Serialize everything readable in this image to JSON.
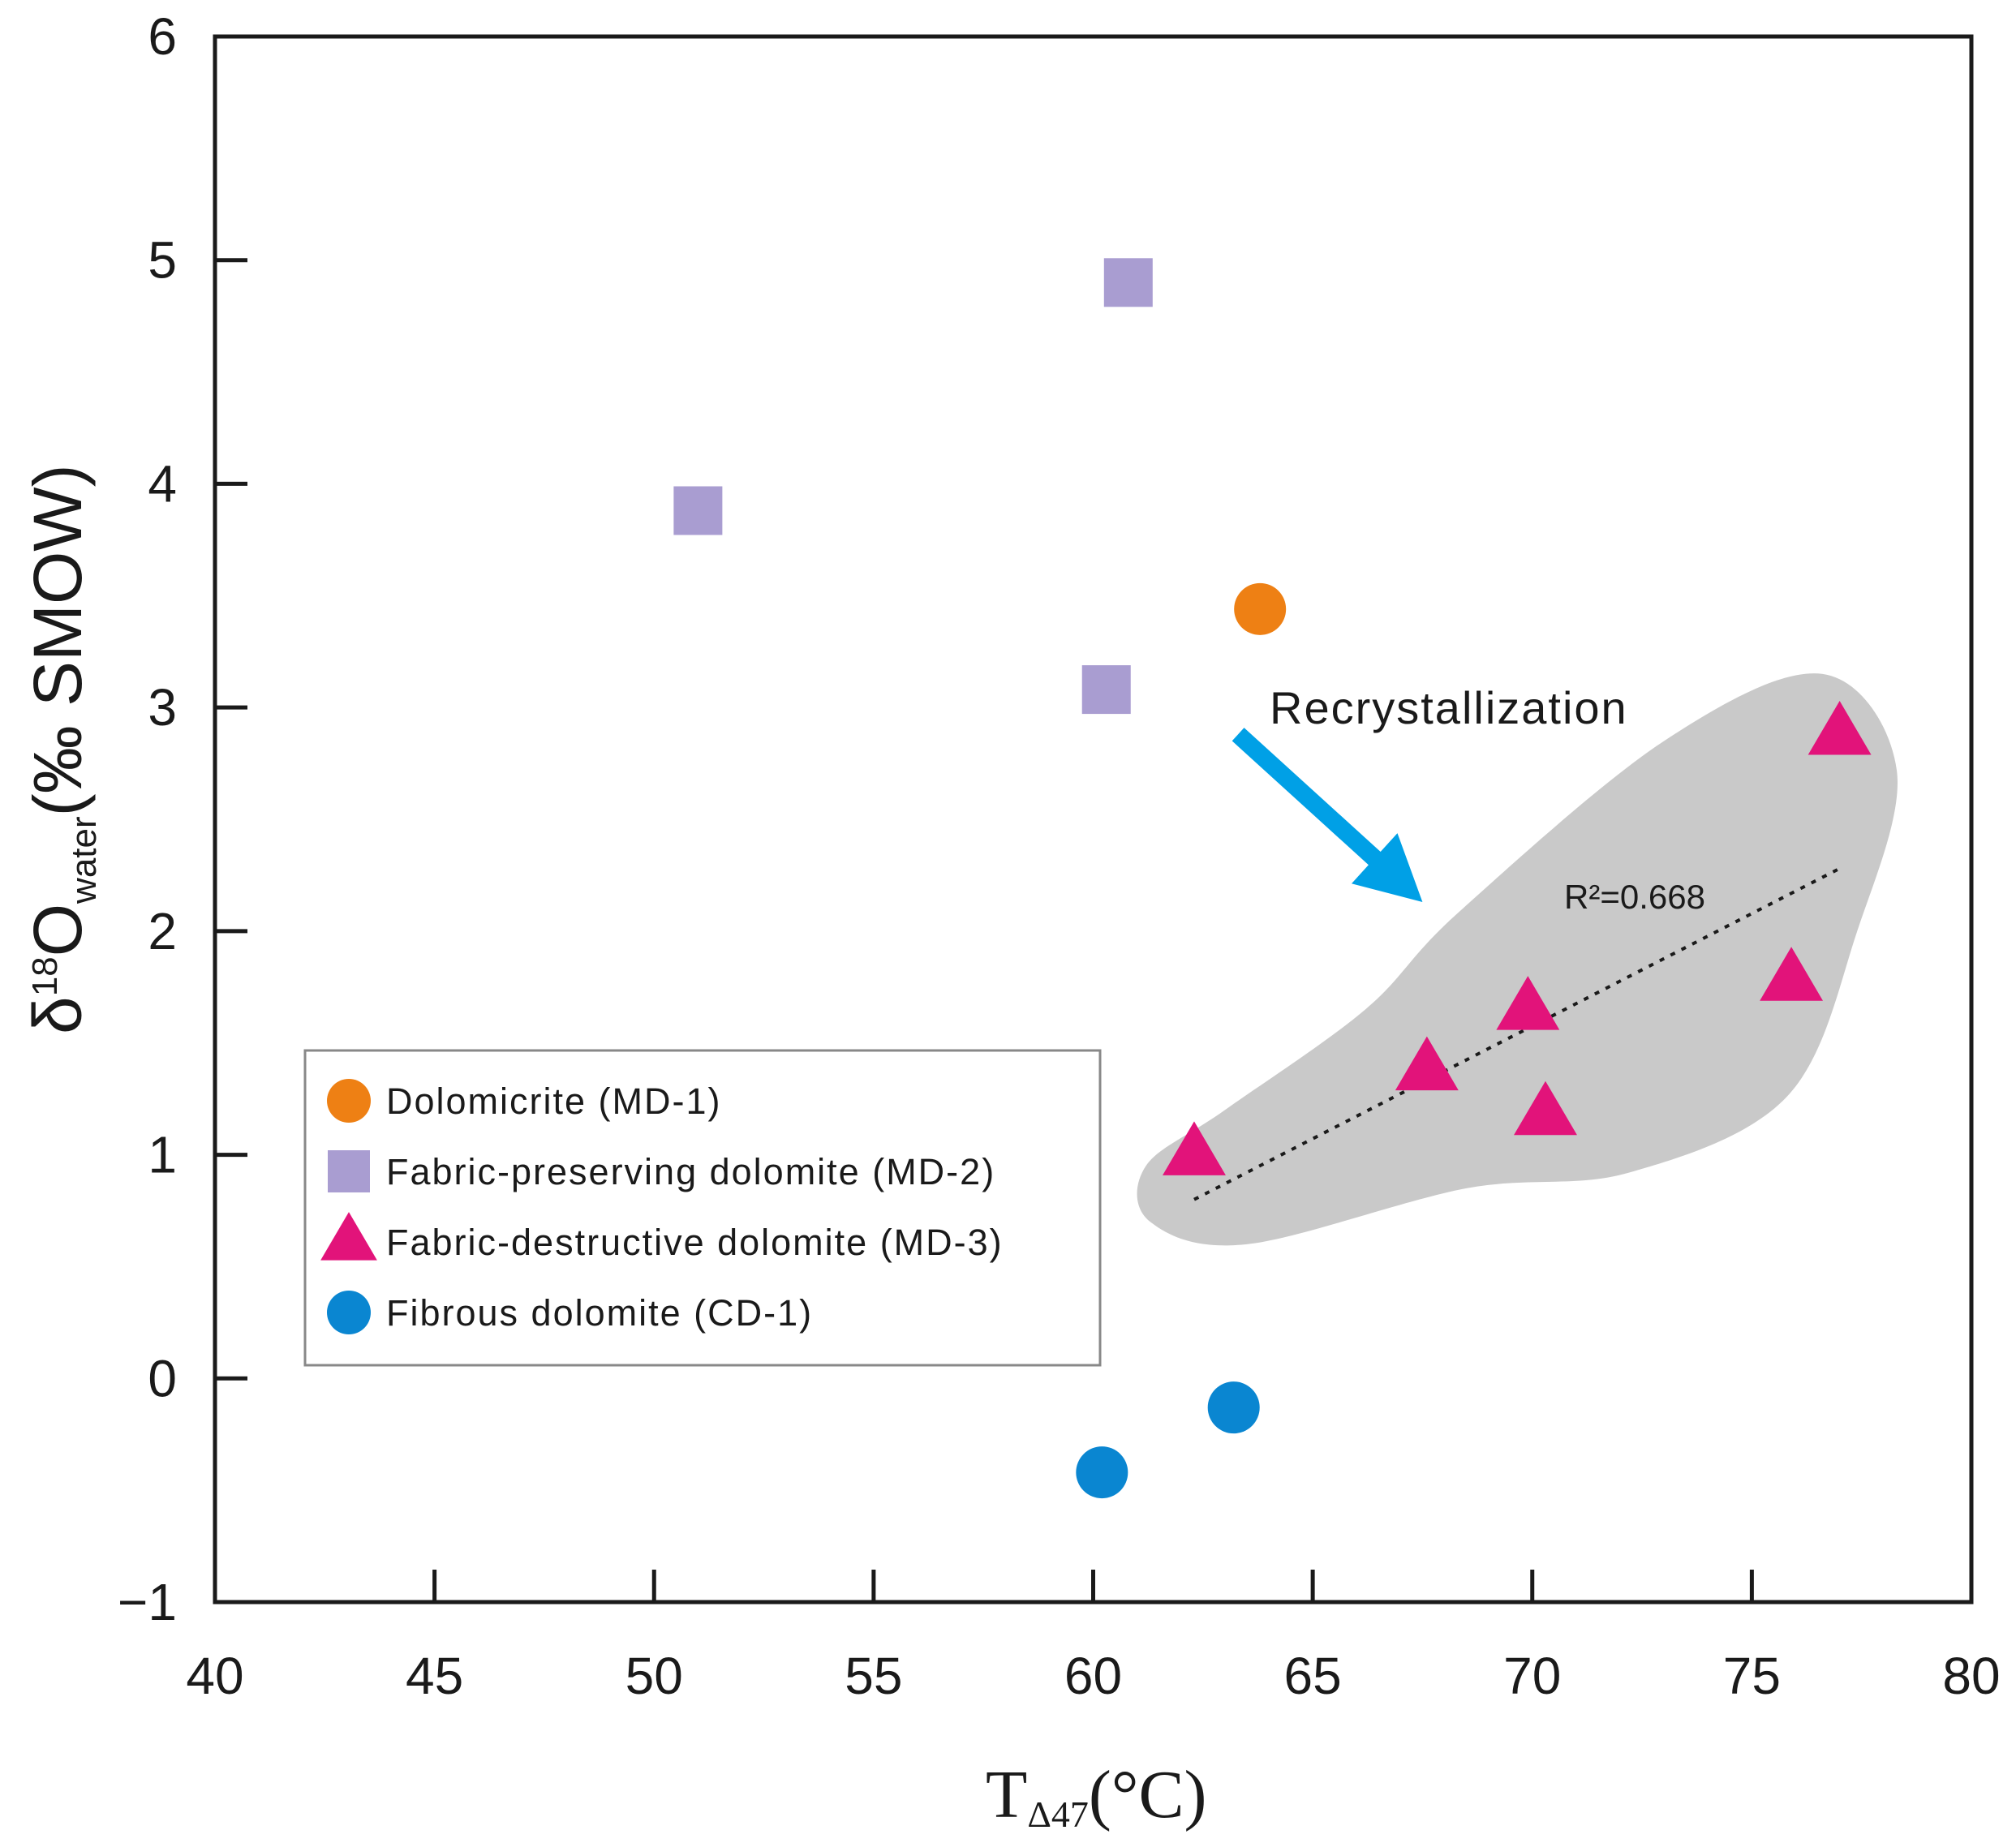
{
  "chart_data": {
    "type": "scatter",
    "xlim": [
      40,
      80
    ],
    "ylim": [
      -1,
      6
    ],
    "x_ticks": [
      40,
      45,
      50,
      55,
      60,
      65,
      70,
      75,
      80
    ],
    "y_ticks": [
      -1,
      0,
      1,
      2,
      3,
      4,
      5,
      6
    ],
    "y_tick_labels": [
      "−1",
      "0",
      "1",
      "2",
      "3",
      "4",
      "5",
      "6"
    ],
    "x_tick_labels": [
      "40",
      "45",
      "50",
      "55",
      "60",
      "65",
      "70",
      "75",
      "80"
    ],
    "xlabel": {
      "main": "T",
      "sub": "Δ47",
      "unit": "(°C)"
    },
    "ylabel": {
      "delta": "δ",
      "sup": "18",
      "main": "O",
      "sub": "water",
      "unit": "(‰ SMOW)"
    },
    "grid": false,
    "legend_position": "left",
    "series": [
      {
        "name": "Dolomicrite (MD-1)",
        "marker": "circle",
        "color": "#ee8014",
        "points": [
          {
            "x": 63.8,
            "y": 3.44
          }
        ]
      },
      {
        "name": "Fabric-preserving dolomite (MD-2)",
        "marker": "square",
        "color": "#a99dd1",
        "points": [
          {
            "x": 51.0,
            "y": 3.88
          },
          {
            "x": 60.8,
            "y": 4.9
          },
          {
            "x": 60.3,
            "y": 3.08
          }
        ]
      },
      {
        "name": "Fabric-destructive dolomite (MD-3)",
        "marker": "triangle",
        "color": "#e2137a",
        "points": [
          {
            "x": 62.3,
            "y": 1.0
          },
          {
            "x": 67.6,
            "y": 1.38
          },
          {
            "x": 69.9,
            "y": 1.65
          },
          {
            "x": 70.3,
            "y": 1.18
          },
          {
            "x": 75.9,
            "y": 1.78
          },
          {
            "x": 77.0,
            "y": 2.88
          }
        ]
      },
      {
        "name": "Fibrous dolomite (CD-1)",
        "marker": "circle",
        "color": "#0a86d1",
        "points": [
          {
            "x": 60.2,
            "y": -0.42
          },
          {
            "x": 63.2,
            "y": -0.13
          }
        ]
      }
    ],
    "trendline": {
      "x1": 62.3,
      "y1": 0.8,
      "x2": 77.0,
      "y2": 2.28,
      "style": "dotted",
      "label": "R²=0.668"
    },
    "annotation": {
      "text": "Recrystallization",
      "arrow_from": {
        "x": 63.3,
        "y": 2.88
      },
      "arrow_to": {
        "x": 67.5,
        "y": 2.13
      },
      "arrow_color": "#00a0e6"
    },
    "region": {
      "color": "#c9c9c9",
      "encloses_series": "Fabric-destructive dolomite (MD-3)"
    }
  }
}
